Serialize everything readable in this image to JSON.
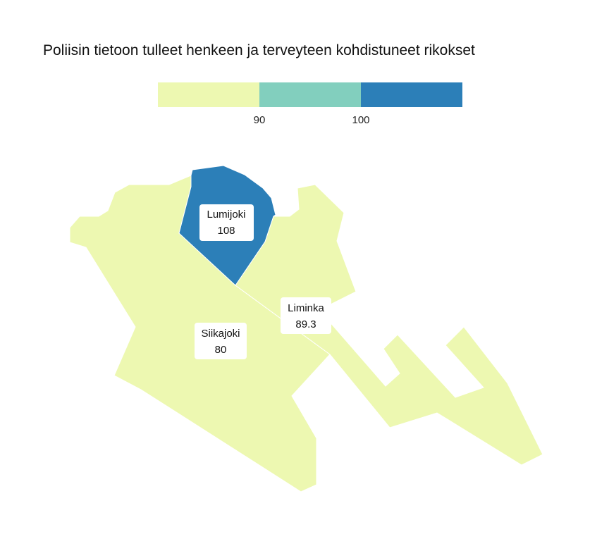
{
  "title": "Poliisin tietoon tulleet henkeen ja terveyteen kohdistuneet rikokset",
  "legend": {
    "bins": [
      {
        "color": "#edf8b1"
      },
      {
        "color": "#82cfbe"
      },
      {
        "color": "#2c7fb8"
      }
    ],
    "ticks": [
      "90",
      "100"
    ]
  },
  "regions": [
    {
      "name": "Lumijoki",
      "value": "108",
      "color": "#2c7fb8"
    },
    {
      "name": "Liminka",
      "value": "89.3",
      "color": "#edf8b1"
    },
    {
      "name": "Siikajoki",
      "value": "80",
      "color": "#edf8b1"
    }
  ]
}
